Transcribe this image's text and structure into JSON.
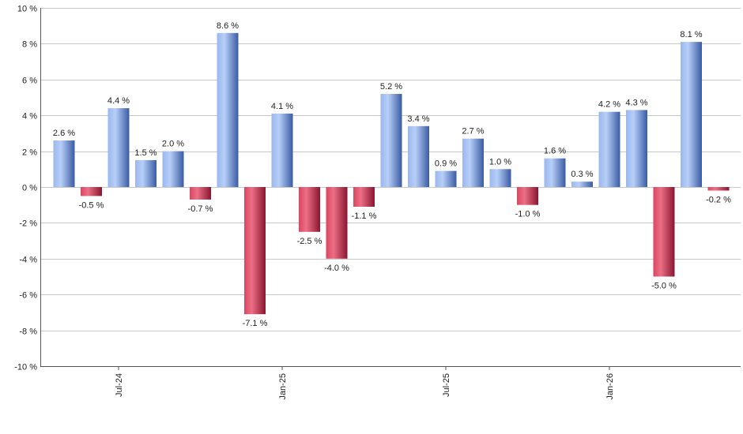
{
  "chart_data": {
    "type": "bar",
    "title": "",
    "xlabel": "",
    "ylabel": "",
    "ylim": [
      -10,
      10
    ],
    "y_ticks": [
      10,
      8,
      6,
      4,
      2,
      0,
      -2,
      -4,
      -6,
      -8,
      -10
    ],
    "y_tick_labels": [
      "10 %",
      "8 %",
      "6 %",
      "4 %",
      "2 %",
      "0 %",
      "-2 %",
      "-4 %",
      "-6 %",
      "-8 %",
      "-10 %"
    ],
    "x_tick_labels": [
      {
        "label": "Jul-24",
        "index": 2
      },
      {
        "label": "Jan-25",
        "index": 8
      },
      {
        "label": "Jul-25",
        "index": 14
      },
      {
        "label": "Jan-26",
        "index": 20
      }
    ],
    "values": [
      2.6,
      -0.5,
      4.4,
      1.5,
      2.0,
      -0.7,
      8.6,
      -7.1,
      4.1,
      -2.5,
      -4.0,
      -1.1,
      5.2,
      3.4,
      0.9,
      2.7,
      1.0,
      -1.0,
      1.6,
      0.3,
      4.2,
      4.3,
      -5.0,
      8.1,
      -0.2
    ],
    "labels": [
      "2.6 %",
      "-0.5 %",
      "4.4 %",
      "1.5 %",
      "2.0 %",
      "-0.7 %",
      "8.6 %",
      "-7.1 %",
      "4.1 %",
      "-2.5 %",
      "-4.0 %",
      "-1.1 %",
      "5.2 %",
      "3.4 %",
      "0.9 %",
      "2.7 %",
      "1.0 %",
      "-1.0 %",
      "1.6 %",
      "0.3 %",
      "4.2 %",
      "4.3 %",
      "-5.0 %",
      "8.1 %",
      "-0.2 %"
    ],
    "grid": true,
    "legend": "none",
    "colors": {
      "positive_light": "#a9c4f5",
      "positive_dark": "#3c5fa8",
      "negative_light": "#e6617a",
      "negative_dark": "#8e1a33",
      "grid": "#c8c8c8",
      "axis": "#555555"
    }
  }
}
